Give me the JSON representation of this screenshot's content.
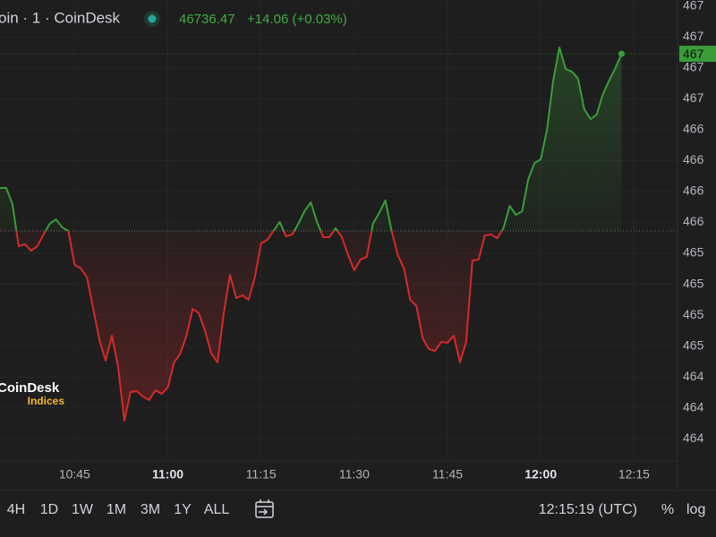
{
  "header": {
    "symbol": "oin · 1 · CoinDesk",
    "price": "46736.47",
    "change": "+14.06 (+0.03%)"
  },
  "watermark": {
    "brand": "CoinDesk",
    "sub": "Indices"
  },
  "toolbar": {
    "ranges": [
      "4H",
      "1D",
      "1W",
      "1M",
      "3M",
      "1Y",
      "ALL"
    ],
    "time": "12:15:19 (UTC)",
    "percent": "%",
    "log": "log"
  },
  "chart_data": {
    "type": "line",
    "up_color": "#3a9d3a",
    "down_color": "#d42a2a",
    "grid": true,
    "baseline": 46593.1,
    "last_label": {
      "value": 46736.47,
      "label": "467"
    },
    "xlim": [
      "10:33",
      "12:22"
    ],
    "xticks": [
      "10:45",
      "11:00",
      "11:15",
      "11:30",
      "11:45",
      "12:00",
      "12:15"
    ],
    "ylim": [
      46407,
      46780
    ],
    "yticks": [
      {
        "value": 46775,
        "label": "467"
      },
      {
        "value": 46750,
        "label": "467"
      },
      {
        "value": 46725,
        "label": "467"
      },
      {
        "value": 46700,
        "label": "467"
      },
      {
        "value": 46675,
        "label": "466"
      },
      {
        "value": 46650,
        "label": "466"
      },
      {
        "value": 46625,
        "label": "466"
      },
      {
        "value": 46600,
        "label": "466"
      },
      {
        "value": 46575,
        "label": "465"
      },
      {
        "value": 46550,
        "label": "465"
      },
      {
        "value": 46525,
        "label": "465"
      },
      {
        "value": 46500,
        "label": "465"
      },
      {
        "value": 46475,
        "label": "464"
      },
      {
        "value": 46450,
        "label": "464"
      },
      {
        "value": 46425,
        "label": "464"
      }
    ],
    "x": [
      "10:33",
      "10:34",
      "10:35",
      "10:36",
      "10:37",
      "10:38",
      "10:39",
      "10:40",
      "10:41",
      "10:42",
      "10:43",
      "10:44",
      "10:45",
      "10:46",
      "10:47",
      "10:48",
      "10:49",
      "10:50",
      "10:51",
      "10:52",
      "10:53",
      "10:54",
      "10:55",
      "10:56",
      "10:57",
      "10:58",
      "10:59",
      "11:00",
      "11:01",
      "11:02",
      "11:03",
      "11:04",
      "11:05",
      "11:06",
      "11:07",
      "11:08",
      "11:09",
      "11:10",
      "11:11",
      "11:12",
      "11:13",
      "11:14",
      "11:15",
      "11:16",
      "11:17",
      "11:18",
      "11:19",
      "11:20",
      "11:21",
      "11:22",
      "11:23",
      "11:24",
      "11:25",
      "11:26",
      "11:27",
      "11:28",
      "11:29",
      "11:30",
      "11:31",
      "11:32",
      "11:33",
      "11:34",
      "11:35",
      "11:36",
      "11:37",
      "11:38",
      "11:39",
      "11:40",
      "11:41",
      "11:42",
      "11:43",
      "11:44",
      "11:45",
      "11:46",
      "11:47",
      "11:48",
      "11:49",
      "11:50",
      "11:51",
      "11:52",
      "11:53",
      "11:54",
      "11:55",
      "11:56",
      "11:57",
      "11:58",
      "11:59",
      "12:00",
      "12:01",
      "12:02",
      "12:03",
      "12:04",
      "12:05",
      "12:06",
      "12:07",
      "12:08",
      "12:09",
      "12:10",
      "12:11",
      "12:12",
      "12:13"
    ],
    "values": [
      46627.9,
      46627.9,
      46614.9,
      46580.8,
      46582.3,
      46577.2,
      46580.8,
      46590.2,
      46598.9,
      46602.5,
      46596.0,
      46593.1,
      46565.6,
      46562.7,
      46555.5,
      46530.1,
      46504.8,
      46488.1,
      46508.4,
      46483.0,
      46439.6,
      46462.8,
      46463.5,
      46459.1,
      46456.2,
      46464.2,
      46461.3,
      46466.4,
      46486.7,
      46493.9,
      46508.4,
      46530.1,
      46526.5,
      46512.0,
      46493.9,
      46486.7,
      46526.5,
      46557.6,
      46538.8,
      46541.0,
      46537.4,
      46555.5,
      46583.0,
      46585.9,
      46593.1,
      46600.4,
      46588.8,
      46590.2,
      46598.9,
      46609.1,
      46616.3,
      46600.4,
      46588.1,
      46588.1,
      46595.3,
      46588.1,
      46573.6,
      46561.3,
      46570.0,
      46572.1,
      46598.9,
      46607.6,
      46617.8,
      46593.1,
      46573.6,
      46562.7,
      46537.4,
      46532.3,
      46506.2,
      46497.5,
      46496.1,
      46503.3,
      46502.6,
      46508.4,
      46486.7,
      46503.3,
      46569.2,
      46570.0,
      46589.5,
      46590.2,
      46587.3,
      46595.3,
      46613.4,
      46606.2,
      46609.1,
      46635.1,
      46648.2,
      46651.1,
      46675.0,
      46714.8,
      46741.6,
      46724.2,
      46722.1,
      46716.3,
      46691.6,
      46683.7,
      46687.3,
      46703.9,
      46714.8,
      46725.0,
      46736.47
    ]
  }
}
